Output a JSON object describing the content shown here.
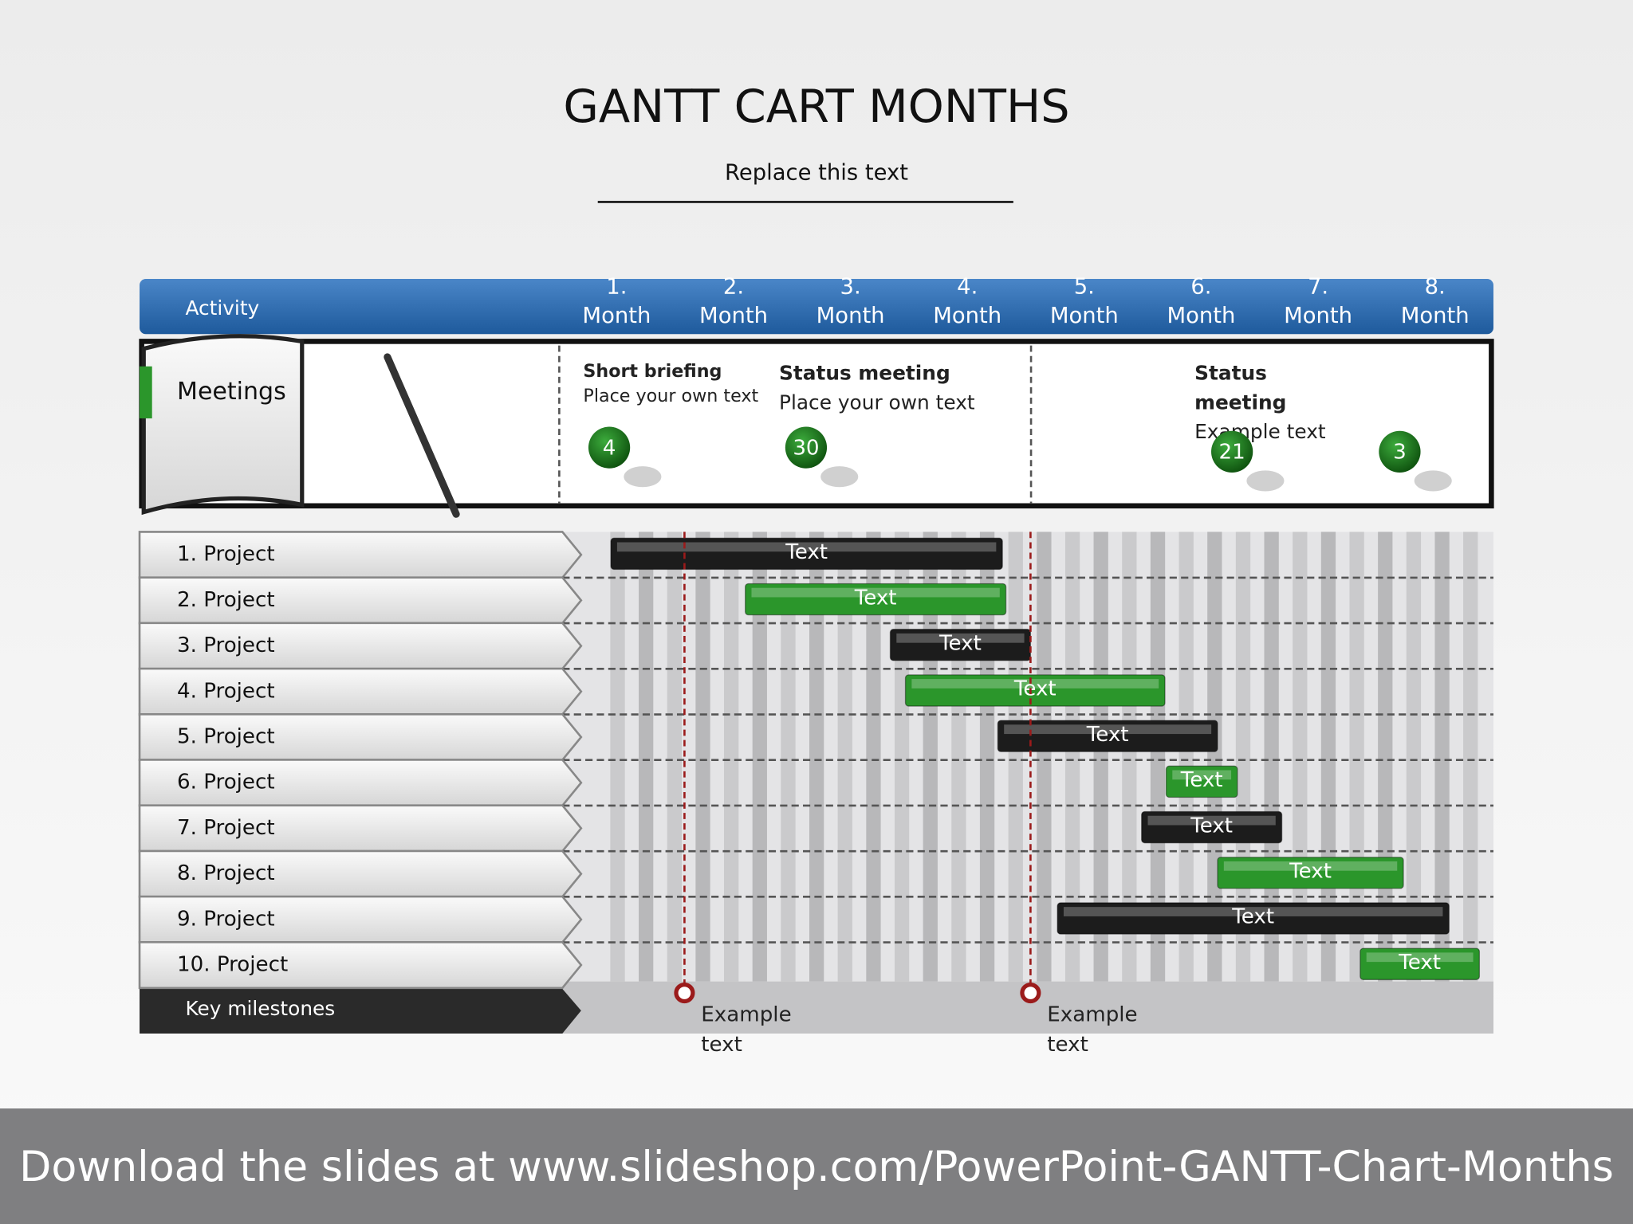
{
  "title": "GANTT CART MONTHS",
  "subtitle": "Replace this text",
  "header": {
    "activity": "Activity",
    "months": [
      "1. Month",
      "2. Month",
      "3. Month",
      "4. Month",
      "5. Month",
      "6. Month",
      "7. Month",
      "8. Month"
    ],
    "xlim": [
      0,
      8
    ]
  },
  "meetings": {
    "label": "Meetings",
    "events": [
      {
        "title": "Short briefing",
        "text": "Place your own text"
      },
      {
        "title": "Status meeting",
        "text": "Place your own text"
      },
      {
        "title": "Status meeting",
        "text": "Example text"
      }
    ],
    "pins": [
      "4",
      "30",
      "21",
      "3"
    ]
  },
  "projects": [
    {
      "label": "1. Project",
      "bar": {
        "label": "Text",
        "start": 0.45,
        "end": 3.8,
        "color": "#1c1c1c"
      }
    },
    {
      "label": "2. Project",
      "bar": {
        "label": "Text",
        "start": 1.6,
        "end": 3.83,
        "color": "#2b962b"
      }
    },
    {
      "label": "3. Project",
      "bar": {
        "label": "Text",
        "start": 2.84,
        "end": 4.04,
        "color": "#1c1c1c"
      }
    },
    {
      "label": "4. Project",
      "bar": {
        "label": "Text",
        "start": 2.97,
        "end": 5.19,
        "color": "#2b962b"
      }
    },
    {
      "label": "5. Project",
      "bar": {
        "label": "Text",
        "start": 3.76,
        "end": 5.64,
        "color": "#1c1c1c"
      }
    },
    {
      "label": "6. Project",
      "bar": {
        "label": "Text",
        "start": 5.2,
        "end": 5.81,
        "color": "#2b962b"
      }
    },
    {
      "label": "7. Project",
      "bar": {
        "label": "Text",
        "start": 4.99,
        "end": 6.19,
        "color": "#1c1c1c"
      }
    },
    {
      "label": "8. Project",
      "bar": {
        "label": "Text",
        "start": 5.64,
        "end": 7.23,
        "color": "#2b962b"
      }
    },
    {
      "label": "9. Project",
      "bar": {
        "label": "Text",
        "start": 4.27,
        "end": 7.62,
        "color": "#1c1c1c"
      }
    },
    {
      "label": "10. Project",
      "bar": {
        "label": "Text",
        "start": 6.86,
        "end": 7.88,
        "color": "#2b962b"
      }
    }
  ],
  "milestones": {
    "label": "Key milestones",
    "items": [
      {
        "at": 1.08,
        "text": "Example text"
      },
      {
        "at": 4.04,
        "text": "Example text"
      }
    ]
  },
  "footer": "Download the slides at www.slideshop.com/PowerPoint-GANTT-Chart-Months"
}
